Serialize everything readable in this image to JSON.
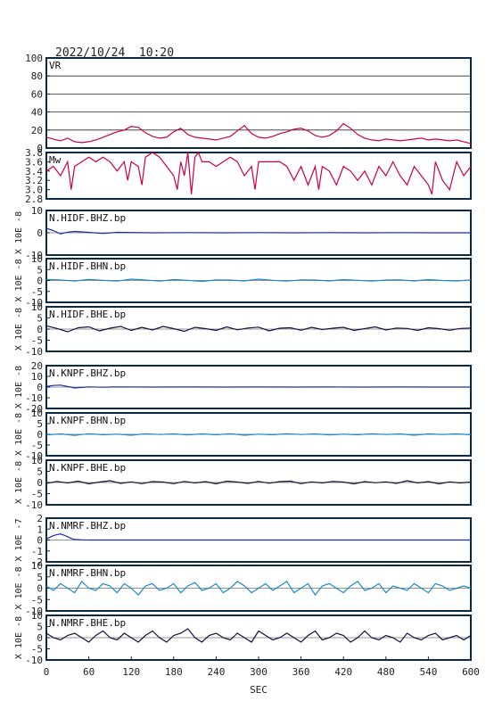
{
  "header": {
    "timestamp": "2022/10/24  10:20"
  },
  "colors": {
    "frame": "#0a2a44",
    "vr": "#cc0044",
    "mw": "#cc0044",
    "bhz": "#1a2aa8",
    "bhn": "#1a88cc",
    "bhe": "#101040",
    "zero_line": "#2a2a2a"
  },
  "x_axis": {
    "label": "SEC",
    "range": [
      0,
      600
    ],
    "ticks": [
      0,
      60,
      120,
      180,
      240,
      300,
      360,
      420,
      480,
      540,
      600
    ]
  },
  "chart_data": [
    {
      "type": "line",
      "name": "VR",
      "label": "VR",
      "ylim": [
        0,
        100
      ],
      "yticks": [
        0,
        20,
        40,
        60,
        80,
        100
      ],
      "grid": true,
      "color_key": "vr",
      "x": [
        0,
        10,
        20,
        30,
        40,
        50,
        60,
        70,
        80,
        90,
        100,
        110,
        120,
        130,
        140,
        150,
        160,
        170,
        180,
        190,
        200,
        210,
        220,
        230,
        240,
        250,
        260,
        270,
        280,
        290,
        300,
        310,
        320,
        330,
        340,
        350,
        360,
        370,
        380,
        390,
        400,
        410,
        420,
        430,
        440,
        450,
        460,
        470,
        480,
        490,
        500,
        510,
        520,
        530,
        540,
        550,
        560,
        570,
        580,
        590,
        600
      ],
      "values": [
        12,
        10,
        8,
        11,
        7,
        6,
        7,
        9,
        12,
        15,
        18,
        20,
        24,
        23,
        17,
        13,
        11,
        12,
        18,
        22,
        15,
        12,
        11,
        10,
        9,
        11,
        13,
        19,
        25,
        16,
        12,
        11,
        13,
        16,
        18,
        21,
        22,
        19,
        14,
        12,
        14,
        19,
        27,
        22,
        15,
        11,
        9,
        8,
        10,
        9,
        8,
        9,
        10,
        11,
        9,
        10,
        9,
        8,
        9,
        7,
        5
      ]
    },
    {
      "type": "line",
      "name": "Mw",
      "label": "Mw",
      "ylim": [
        2.8,
        3.8
      ],
      "yticks": [
        2.8,
        3.0,
        3.2,
        3.4,
        3.6,
        3.8
      ],
      "ytick_labels": [
        "2.8",
        "3.0",
        "3.2",
        "3.4",
        "3.6",
        "3.8"
      ],
      "grid": false,
      "color_key": "mw",
      "x": [
        0,
        10,
        20,
        30,
        35,
        40,
        50,
        60,
        70,
        80,
        90,
        100,
        110,
        115,
        120,
        130,
        135,
        140,
        150,
        160,
        165,
        170,
        180,
        185,
        190,
        195,
        200,
        205,
        210,
        215,
        220,
        230,
        240,
        250,
        260,
        270,
        280,
        290,
        295,
        300,
        310,
        320,
        330,
        340,
        350,
        360,
        370,
        380,
        385,
        390,
        400,
        410,
        420,
        430,
        440,
        450,
        460,
        470,
        480,
        490,
        500,
        510,
        520,
        530,
        540,
        545,
        550,
        560,
        570,
        580,
        590,
        600
      ],
      "values": [
        3.4,
        3.5,
        3.3,
        3.6,
        3.0,
        3.5,
        3.6,
        3.7,
        3.6,
        3.7,
        3.6,
        3.4,
        3.6,
        3.2,
        3.6,
        3.5,
        3.1,
        3.7,
        3.8,
        3.7,
        3.6,
        3.5,
        3.3,
        3.0,
        3.6,
        3.3,
        3.8,
        2.9,
        3.7,
        3.8,
        3.6,
        3.6,
        3.5,
        3.6,
        3.7,
        3.6,
        3.3,
        3.5,
        3.0,
        3.6,
        3.6,
        3.6,
        3.6,
        3.5,
        3.2,
        3.5,
        3.1,
        3.5,
        3.0,
        3.5,
        3.4,
        3.1,
        3.5,
        3.4,
        3.2,
        3.4,
        3.1,
        3.5,
        3.3,
        3.6,
        3.3,
        3.1,
        3.5,
        3.3,
        3.1,
        2.9,
        3.6,
        3.2,
        3.0,
        3.6,
        3.3,
        3.5
      ]
    },
    {
      "type": "line",
      "name": "N.HIDF.BHZ.bp",
      "label": "N.HIDF.BHZ.bp",
      "ylabel": "X 10E -8",
      "ylim": [
        -10,
        10
      ],
      "yticks": [
        -10,
        0,
        10
      ],
      "color_key": "bhz",
      "x": [
        0,
        10,
        20,
        30,
        40,
        60,
        80,
        100,
        150,
        200,
        250,
        300,
        350,
        400,
        450,
        500,
        550,
        600
      ],
      "values": [
        2,
        1,
        -0.5,
        0.3,
        0.6,
        0.2,
        -0.3,
        0.2,
        0,
        0.1,
        0,
        0.1,
        0,
        0.1,
        0,
        0.1,
        0,
        0
      ]
    },
    {
      "type": "line",
      "name": "N.HIDF.BHN.bp",
      "label": "N.HIDF.BHN.bp",
      "ylabel": "X 10E -8",
      "ylim": [
        -10,
        10
      ],
      "yticks": [
        -10,
        -5,
        0,
        5,
        10
      ],
      "color_key": "bhn",
      "x": [
        0,
        20,
        40,
        60,
        80,
        100,
        120,
        140,
        160,
        180,
        200,
        220,
        240,
        260,
        280,
        300,
        320,
        340,
        360,
        380,
        400,
        420,
        440,
        460,
        480,
        500,
        520,
        540,
        560,
        580,
        600
      ],
      "values": [
        0.5,
        0.2,
        -0.2,
        0.5,
        0.1,
        -0.3,
        0.6,
        0.2,
        -0.3,
        0.4,
        0.1,
        -0.4,
        0.3,
        0.2,
        -0.2,
        0.6,
        0.1,
        -0.3,
        0.3,
        0.2,
        -0.2,
        0.4,
        0.1,
        -0.3,
        0.2,
        0.3,
        -0.2,
        0.4,
        0.0,
        -0.2,
        0.3
      ]
    },
    {
      "type": "line",
      "name": "N.HIDF.BHE.bp",
      "label": "N.HIDF.BHE.bp",
      "ylabel": "X 10E -8",
      "ylim": [
        -10,
        10
      ],
      "yticks": [
        -10,
        -5,
        0,
        5,
        10
      ],
      "color_key": "bhe",
      "x": [
        0,
        15,
        30,
        45,
        60,
        75,
        90,
        105,
        120,
        135,
        150,
        165,
        180,
        195,
        210,
        225,
        240,
        255,
        270,
        285,
        300,
        315,
        330,
        345,
        360,
        375,
        390,
        405,
        420,
        435,
        450,
        465,
        480,
        495,
        510,
        525,
        540,
        555,
        570,
        585,
        600
      ],
      "values": [
        1.5,
        0.3,
        -1.2,
        0.6,
        1.0,
        -0.8,
        0.4,
        1.2,
        -0.6,
        0.8,
        -0.4,
        1.2,
        0.2,
        -1.0,
        0.8,
        0.2,
        -0.6,
        1.0,
        -0.3,
        0.5,
        0.9,
        -0.8,
        0.4,
        0.6,
        -0.5,
        0.8,
        -0.2,
        0.4,
        0.8,
        -0.6,
        0.2,
        1.0,
        -0.4,
        0.5,
        0.3,
        -0.6,
        0.6,
        0.2,
        -0.5,
        0.3,
        0.5
      ]
    },
    {
      "type": "line",
      "name": "N.KNPF.BHZ.bp",
      "label": "N.KNPF.BHZ.bp",
      "ylabel": "X 10E -8",
      "ylim": [
        -20,
        20
      ],
      "yticks": [
        -20,
        -10,
        0,
        10,
        20
      ],
      "color_key": "bhz",
      "x": [
        0,
        10,
        20,
        30,
        40,
        60,
        80,
        100,
        150,
        200,
        250,
        300,
        350,
        400,
        450,
        500,
        550,
        600
      ],
      "values": [
        0.5,
        1.5,
        1.8,
        0.5,
        -0.8,
        0.2,
        -0.2,
        0.2,
        0,
        0.1,
        0,
        0.1,
        0,
        0.1,
        0,
        0.1,
        0,
        0
      ]
    },
    {
      "type": "line",
      "name": "N.KNPF.BHN.bp",
      "label": "N.KNPF.BHN.bp",
      "ylabel": "X 10E -8",
      "ylim": [
        -10,
        10
      ],
      "yticks": [
        -10,
        -5,
        0,
        5,
        10
      ],
      "color_key": "bhn",
      "x": [
        0,
        20,
        40,
        60,
        80,
        100,
        120,
        140,
        160,
        180,
        200,
        220,
        240,
        260,
        280,
        300,
        320,
        340,
        360,
        380,
        400,
        420,
        440,
        460,
        480,
        500,
        520,
        540,
        560,
        580,
        600
      ],
      "values": [
        -0.3,
        0.2,
        -0.5,
        0.3,
        -0.2,
        0.1,
        -0.4,
        0.3,
        -0.1,
        0.2,
        -0.3,
        0.2,
        -0.2,
        0.3,
        -0.4,
        0.1,
        -0.2,
        0.3,
        -0.1,
        0.2,
        -0.3,
        0.1,
        -0.2,
        0.3,
        -0.1,
        0.2,
        -0.4,
        0.2,
        -0.1,
        0.2,
        -0.2
      ]
    },
    {
      "type": "line",
      "name": "N.KNPF.BHE.bp",
      "label": "N.KNPF.BHE.bp",
      "ylabel": "X 10E -8",
      "ylim": [
        -10,
        10
      ],
      "yticks": [
        -10,
        -5,
        0,
        5,
        10
      ],
      "color_key": "bhe",
      "x": [
        0,
        15,
        30,
        45,
        60,
        75,
        90,
        105,
        120,
        135,
        150,
        165,
        180,
        195,
        210,
        225,
        240,
        255,
        270,
        285,
        300,
        315,
        330,
        345,
        360,
        375,
        390,
        405,
        420,
        435,
        450,
        465,
        480,
        495,
        510,
        525,
        540,
        555,
        570,
        585,
        600
      ],
      "values": [
        -0.4,
        0.5,
        -0.2,
        0.6,
        -0.6,
        0.2,
        0.8,
        -0.4,
        0.3,
        -0.5,
        0.4,
        0.2,
        -0.5,
        0.5,
        -0.2,
        0.4,
        -0.6,
        0.6,
        0.2,
        -0.4,
        0.5,
        -0.3,
        0.4,
        0.6,
        -0.5,
        0.3,
        -0.2,
        0.5,
        0.2,
        -0.6,
        0.4,
        -0.1,
        0.3,
        -0.4,
        0.8,
        -0.2,
        0.4,
        -0.6,
        0.3,
        -0.2,
        0.2
      ]
    },
    {
      "type": "line",
      "name": "N.NMRF.BHZ.bp",
      "label": "N.NMRF.BHZ.bp",
      "ylabel": "X 10E -7",
      "ylim": [
        -2,
        2
      ],
      "yticks": [
        -2,
        -1,
        0,
        1,
        2
      ],
      "color_key": "bhz",
      "x": [
        0,
        5,
        10,
        15,
        20,
        25,
        30,
        35,
        40,
        50,
        60,
        80,
        100,
        150,
        200,
        250,
        300,
        350,
        400,
        450,
        500,
        550,
        600
      ],
      "values": [
        0.1,
        0.25,
        0.4,
        0.5,
        0.55,
        0.45,
        0.3,
        0.15,
        0.05,
        0.02,
        0,
        0,
        0,
        0,
        0,
        0,
        0,
        0,
        0,
        0,
        0,
        0,
        0
      ]
    },
    {
      "type": "line",
      "name": "N.NMRF.BHN.bp",
      "label": "N.NMRF.BHN.bp",
      "ylabel": "X 10E -8",
      "ylim": [
        -10,
        10
      ],
      "yticks": [
        -10,
        -5,
        0,
        5,
        10
      ],
      "color_key": "bhn",
      "x": [
        0,
        10,
        20,
        30,
        40,
        50,
        60,
        70,
        80,
        90,
        100,
        110,
        120,
        130,
        140,
        150,
        160,
        170,
        180,
        190,
        200,
        210,
        220,
        230,
        240,
        250,
        260,
        270,
        280,
        290,
        300,
        310,
        320,
        330,
        340,
        350,
        360,
        370,
        380,
        390,
        400,
        410,
        420,
        430,
        440,
        450,
        460,
        470,
        480,
        490,
        500,
        510,
        520,
        530,
        540,
        550,
        560,
        570,
        580,
        590,
        600
      ],
      "values": [
        1,
        -1,
        2,
        0,
        -2,
        3,
        0,
        -1,
        2,
        1,
        -2,
        2,
        0,
        -3,
        1,
        2,
        -1,
        0,
        2,
        -2,
        1,
        2.5,
        -1,
        0,
        2,
        -2,
        0,
        3,
        1,
        -2,
        0,
        2,
        -1,
        1,
        3,
        -2,
        0,
        2,
        -3,
        1,
        2,
        0,
        -2,
        1,
        3,
        -1,
        0,
        2,
        -2,
        1,
        0,
        -1,
        2,
        0,
        -2,
        2,
        1,
        -1,
        0,
        1,
        0
      ]
    },
    {
      "type": "line",
      "name": "N.NMRF.BHE.bp",
      "label": "N.NMRF.BHE.bp",
      "ylabel": "X 10E -8",
      "ylim": [
        -10,
        10
      ],
      "yticks": [
        -10,
        -5,
        0,
        5,
        10
      ],
      "color_key": "bhe",
      "x": [
        0,
        10,
        20,
        30,
        40,
        50,
        60,
        70,
        80,
        90,
        100,
        110,
        120,
        130,
        140,
        150,
        160,
        170,
        180,
        190,
        200,
        210,
        220,
        230,
        240,
        250,
        260,
        270,
        280,
        290,
        300,
        310,
        320,
        330,
        340,
        350,
        360,
        370,
        380,
        390,
        400,
        410,
        420,
        430,
        440,
        450,
        460,
        470,
        480,
        490,
        500,
        510,
        520,
        530,
        540,
        550,
        560,
        570,
        580,
        590,
        600
      ],
      "values": [
        2,
        0,
        -1,
        1,
        2,
        0,
        -2,
        1,
        3,
        0,
        -1,
        2,
        0,
        -2,
        1,
        3,
        0,
        -2,
        1,
        2,
        4,
        0,
        -2,
        1,
        2,
        0,
        -1,
        2,
        0,
        -2,
        3,
        1,
        -1,
        0,
        2,
        0,
        -2,
        1,
        3,
        -1,
        0,
        2,
        1,
        -2,
        0,
        3,
        0,
        -1,
        1,
        0,
        -2,
        2,
        0,
        -1,
        1,
        2,
        -1,
        0,
        1,
        -1,
        1
      ]
    }
  ]
}
